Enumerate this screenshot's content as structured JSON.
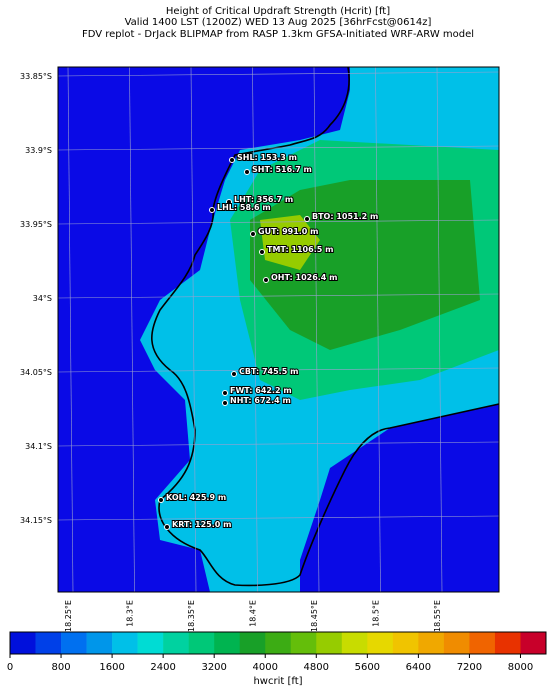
{
  "header": {
    "lines": [
      "Height of Critical Updraft Strength (Hcrit) [ft]",
      "Valid 1400 LST (1200Z) WED 13 Aug 2025 [36hrFcst@0614z]",
      "FDV replot - DrJack BLIPMAP from RASP 1.3km GFSA-Initiated WRF-ARW model"
    ]
  },
  "map": {
    "lat_labels": [
      "33.85°S",
      "33.9°S",
      "33.95°S",
      "34°S",
      "34.05°S",
      "34.1°S",
      "34.15°S"
    ],
    "lon_labels": [
      "18.25°E",
      "18.3°E",
      "18.35°E",
      "18.4°E",
      "18.45°E",
      "18.5°E",
      "18.55°E"
    ],
    "stations": [
      {
        "label": "SHL: 153.3 m"
      },
      {
        "label": "SHT: 516.7 m"
      },
      {
        "label": "LHT: 356.7 m"
      },
      {
        "label": "LHL: 58.6 m"
      },
      {
        "label": "BTO: 1051.2 m"
      },
      {
        "label": "GUT: 991.0 m"
      },
      {
        "label": "TMT: 1106.5 m"
      },
      {
        "label": "OHT: 1026.4 m"
      },
      {
        "label": "CBT: 745.5 m"
      },
      {
        "label": "FWT: 642.2 m"
      },
      {
        "label": "NHT: 672.4 m"
      },
      {
        "label": "KOL: 425.9 m"
      },
      {
        "label": "KRT: 125.0 m"
      }
    ]
  },
  "colorbar": {
    "range": [
      0,
      8400
    ],
    "ticks": [
      0,
      800,
      1600,
      2400,
      3200,
      4000,
      4800,
      5600,
      6400,
      7200,
      8000
    ],
    "colors": [
      "#0010dc",
      "#0040e8",
      "#0070f0",
      "#0096ea",
      "#00c0e8",
      "#00dcd4",
      "#00d2a0",
      "#00c878",
      "#00b450",
      "#18a028",
      "#3cac14",
      "#64be0a",
      "#96cc00",
      "#c8dc00",
      "#e6d800",
      "#f0c400",
      "#f0a800",
      "#f08c00",
      "#f06400",
      "#e83200",
      "#c8002a"
    ],
    "label": "hwcrit [ft]"
  }
}
